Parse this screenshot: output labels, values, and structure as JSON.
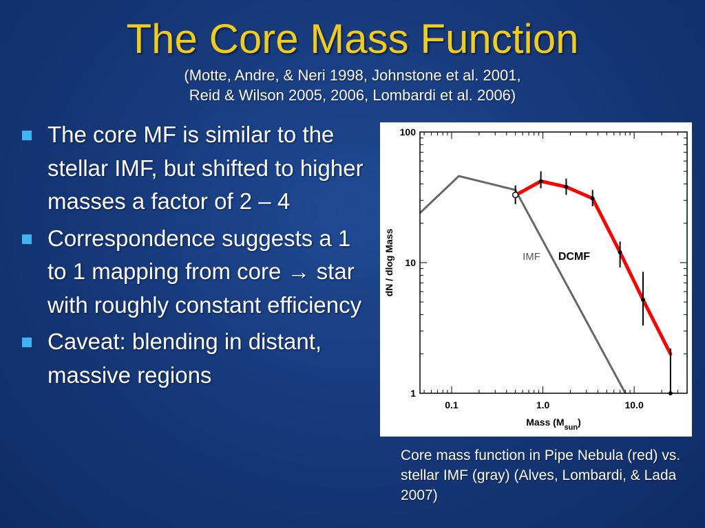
{
  "slide": {
    "title": "The Core Mass Function",
    "references": [
      "(Motte, Andre, & Neri 1998, Johnstone et al. 2001,",
      "Reid & Wilson 2005, 2006, Lombardi et al. 2006)"
    ],
    "bullets": [
      "The core MF is similar to the stellar IMF, but shifted to higher masses a factor of 2 – 4",
      "Correspondence suggests a 1 to 1 mapping from core → star with roughly constant efficiency",
      "Caveat: blending in distant, massive regions"
    ],
    "caption": "Core mass function in Pipe Nebula (red) vs. stellar IMF (gray) (Alves, Lombardi, & Lada 2007)",
    "colors": {
      "background": "#173a7c",
      "title": "#f2cc1a",
      "bullet_marker": "#3fb4f0",
      "cmf_line": "#ff0000",
      "imf_line": "#666666"
    }
  },
  "chart_data": {
    "type": "line",
    "xlabel": "Mass (M",
    "xlabel_sub": "sun",
    "xlabel_close": ")",
    "ylabel": "dN / dlog Mass",
    "xscale": "log",
    "yscale": "log",
    "xlim": [
      0.045,
      38
    ],
    "ylim": [
      1,
      100
    ],
    "x_ticks": [
      {
        "value": 0.1,
        "label": "0.1"
      },
      {
        "value": 1.0,
        "label": "1.0"
      },
      {
        "value": 10.0,
        "label": "10.0"
      }
    ],
    "y_ticks": [
      {
        "value": 1,
        "label": "1"
      },
      {
        "value": 10,
        "label": "10"
      },
      {
        "value": 100,
        "label": "100"
      }
    ],
    "grid": false,
    "series": [
      {
        "name": "IMF",
        "color": "#666666",
        "x": [
          0.045,
          0.12,
          0.5,
          8.0
        ],
        "y": [
          24,
          46,
          36,
          1
        ]
      },
      {
        "name": "DCMF",
        "color": "#ff0000",
        "x": [
          0.55,
          0.95,
          1.8,
          3.5,
          7.0,
          12.5,
          25.0
        ],
        "y": [
          34,
          42,
          38,
          31,
          12,
          5.2,
          2.0
        ]
      }
    ],
    "data_points": {
      "x": [
        0.5,
        0.95,
        1.8,
        3.5,
        7.0,
        12.5,
        25.0
      ],
      "y": [
        33,
        42,
        38,
        31,
        12,
        5.2,
        1.0
      ],
      "err_low": [
        28,
        37,
        33,
        27,
        9.2,
        3.3,
        1.0
      ],
      "err_high": [
        39,
        50,
        44,
        36,
        14.5,
        8.5,
        2.2
      ],
      "open": [
        true,
        false,
        false,
        false,
        false,
        false,
        false
      ]
    },
    "annotations": [
      {
        "text": "IMF",
        "x": 0.75,
        "y": 10.5
      },
      {
        "text": "DCMF",
        "x": 2.2,
        "y": 10.5
      }
    ]
  }
}
